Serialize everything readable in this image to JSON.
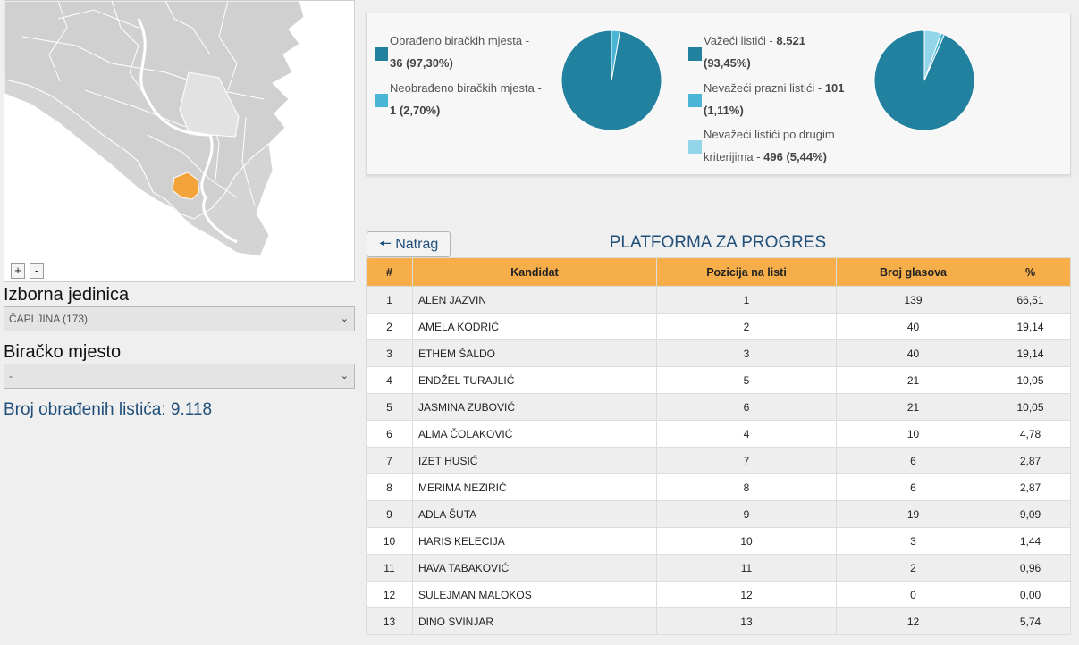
{
  "map": {
    "zoom_in_label": "+",
    "zoom_out_label": "-",
    "colors": {
      "land": "#d0d0d0",
      "border": "#ffffff",
      "selected": "#f2a33a",
      "highlight": "#e2e2e2",
      "water": "#ffffff"
    }
  },
  "filters": {
    "district_label": "Izborna jedinica",
    "district_value": "ČAPLJINA (173)",
    "station_label": "Biračko mjesto",
    "station_value": "-"
  },
  "processed_ballots_text": "Broj obrađenih listića: 9.118",
  "stats": {
    "stations": {
      "items": [
        {
          "label": "Obrađeno biračkih mjesta - ",
          "value": "36 (97,30%)",
          "color": "#22819e",
          "percent": 97.3
        },
        {
          "label": "Neobrađeno biračkih mjesta - ",
          "value": "1 (2,70%)",
          "color": "#4bb5d6",
          "percent": 2.7
        }
      ]
    },
    "ballots": {
      "items": [
        {
          "label": "Važeći listići - ",
          "value": "8.521",
          "value2": "(93,45%)",
          "color": "#22819e",
          "percent": 93.45
        },
        {
          "label": "Nevažeći prazni listići - ",
          "value": "101",
          "value2": "(1,11%)",
          "color": "#4bb5d6",
          "percent": 1.11
        },
        {
          "label": "Nevažeći listići po drugim",
          "label2": "kriterijima - ",
          "value": "496 (5,44%)",
          "color": "#93d6ea",
          "percent": 5.44
        }
      ]
    }
  },
  "results": {
    "back_label": "Natrag",
    "title": "PLATFORMA ZA PROGRES",
    "columns": [
      "#",
      "Kandidat",
      "Pozicija na listi",
      "Broj glasova",
      "%"
    ],
    "rows": [
      [
        "1",
        "ALEN JAZVIN",
        "1",
        "139",
        "66,51"
      ],
      [
        "2",
        "AMELA KODRIĆ",
        "2",
        "40",
        "19,14"
      ],
      [
        "3",
        "ETHEM ŠALDO",
        "3",
        "40",
        "19,14"
      ],
      [
        "4",
        "ENDŽEL TURAJLIĆ",
        "5",
        "21",
        "10,05"
      ],
      [
        "5",
        "JASMINA ZUBOVIĆ",
        "6",
        "21",
        "10,05"
      ],
      [
        "6",
        "ALMA ČOLAKOVIĆ",
        "4",
        "10",
        "4,78"
      ],
      [
        "7",
        "IZET HUSIĆ",
        "7",
        "6",
        "2,87"
      ],
      [
        "8",
        "MERIMA NEZIRIĆ",
        "8",
        "6",
        "2,87"
      ],
      [
        "9",
        "ADLA ŠUTA",
        "9",
        "19",
        "9,09"
      ],
      [
        "10",
        "HARIS KELECIJA",
        "10",
        "3",
        "1,44"
      ],
      [
        "11",
        "HAVA TABAKOVIĆ",
        "11",
        "2",
        "0,96"
      ],
      [
        "12",
        "SULEJMAN MALOKOS",
        "12",
        "0",
        "0,00"
      ],
      [
        "13",
        "DINO SVINJAR",
        "13",
        "12",
        "5,74"
      ]
    ]
  }
}
